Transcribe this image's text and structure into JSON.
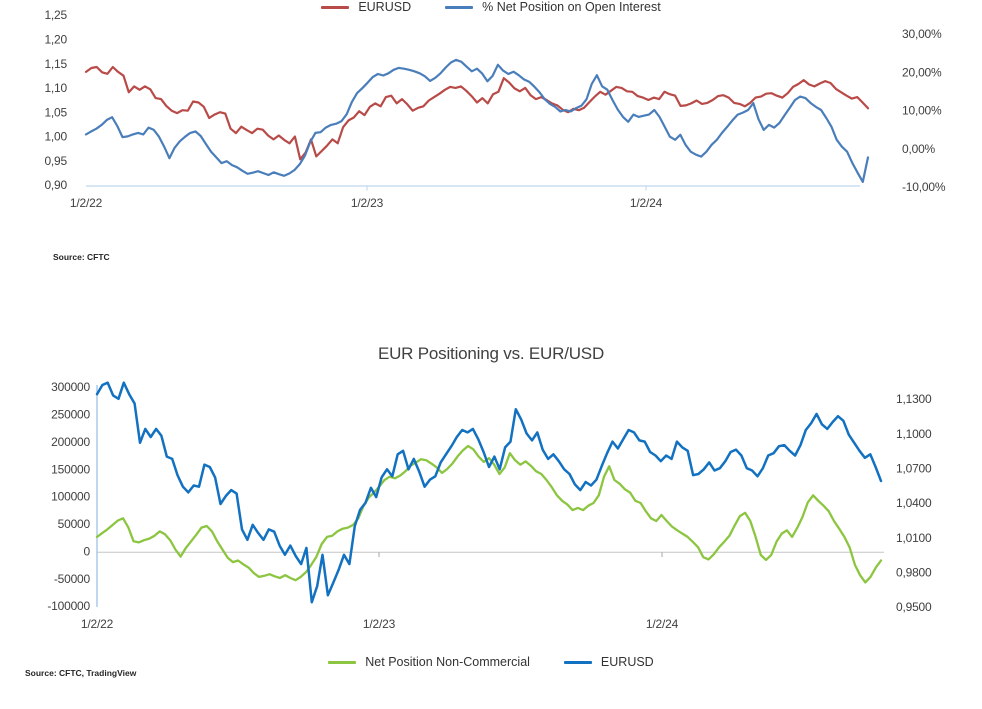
{
  "chart_data": [
    {
      "type": "line",
      "title": "",
      "source": "Source: CFTC",
      "x_tick_labels": [
        "1/2/22",
        "1/2/23",
        "1/2/24"
      ],
      "left_axis": {
        "ticks": [
          "1,25",
          "1,20",
          "1,15",
          "1,10",
          "1,05",
          "1,00",
          "0,95",
          "0,90"
        ],
        "min": 0.9,
        "max": 1.25
      },
      "right_axis": {
        "ticks": [
          "30,00%",
          "20,00%",
          "10,00%",
          "0,00%",
          "-10,00%"
        ],
        "min": -10,
        "max": 30
      },
      "legend_position": "bottom",
      "grid": "axis-line-only",
      "series": [
        {
          "name": "EURUSD",
          "axis": "left",
          "color": "#B84A48",
          "values": [
            1.135,
            1.143,
            1.145,
            1.134,
            1.131,
            1.145,
            1.135,
            1.127,
            1.093,
            1.105,
            1.098,
            1.105,
            1.099,
            1.081,
            1.079,
            1.065,
            1.055,
            1.05,
            1.056,
            1.055,
            1.074,
            1.072,
            1.063,
            1.04,
            1.047,
            1.052,
            1.049,
            1.018,
            1.009,
            1.022,
            1.015,
            1.009,
            1.018,
            1.016,
            1.004,
            0.996,
            1.004,
            0.995,
            0.988,
            1.002,
            0.955,
            0.969,
            0.996,
            0.961,
            0.972,
            0.983,
            0.996,
            0.988,
            1.021,
            1.035,
            1.041,
            1.054,
            1.046,
            1.063,
            1.07,
            1.064,
            1.083,
            1.086,
            1.07,
            1.079,
            1.068,
            1.055,
            1.061,
            1.064,
            1.076,
            1.083,
            1.09,
            1.098,
            1.104,
            1.102,
            1.105,
            1.096,
            1.085,
            1.072,
            1.081,
            1.07,
            1.089,
            1.094,
            1.122,
            1.113,
            1.101,
            1.095,
            1.102,
            1.087,
            1.079,
            1.083,
            1.077,
            1.07,
            1.066,
            1.057,
            1.052,
            1.059,
            1.056,
            1.061,
            1.073,
            1.084,
            1.094,
            1.088,
            1.096,
            1.104,
            1.102,
            1.095,
            1.094,
            1.085,
            1.082,
            1.077,
            1.082,
            1.079,
            1.094,
            1.089,
            1.086,
            1.065,
            1.066,
            1.07,
            1.076,
            1.069,
            1.071,
            1.077,
            1.085,
            1.087,
            1.082,
            1.071,
            1.069,
            1.064,
            1.071,
            1.082,
            1.084,
            1.09,
            1.091,
            1.086,
            1.082,
            1.091,
            1.104,
            1.11,
            1.118,
            1.109,
            1.105,
            1.111,
            1.116,
            1.112,
            1.1,
            1.093,
            1.086,
            1.08,
            1.083,
            1.072,
            1.06
          ]
        },
        {
          "name": "% Net Position on Open Interest",
          "axis": "right",
          "color": "#4A7EBB",
          "values": [
            4.0,
            4.8,
            5.5,
            6.5,
            7.8,
            8.5,
            6.2,
            3.3,
            3.5,
            4.0,
            4.4,
            4.0,
            5.8,
            5.2,
            3.4,
            0.8,
            -2.2,
            0.5,
            2.2,
            3.4,
            4.4,
            4.8,
            3.6,
            1.5,
            -0.5,
            -2.0,
            -3.5,
            -3.0,
            -4.0,
            -4.6,
            -5.5,
            -6.3,
            -6.0,
            -5.6,
            -6.1,
            -6.6,
            -5.9,
            -6.4,
            -6.8,
            -6.2,
            -5.3,
            -3.8,
            -1.5,
            2.0,
            4.4,
            4.6,
            5.8,
            6.5,
            6.8,
            7.5,
            9.3,
            12.5,
            14.8,
            16.1,
            17.5,
            19.0,
            19.8,
            19.4,
            20.0,
            20.9,
            21.4,
            21.2,
            20.9,
            20.5,
            20.0,
            19.2,
            18.0,
            18.8,
            20.0,
            21.5,
            22.8,
            23.5,
            23.0,
            21.7,
            20.5,
            21.2,
            19.9,
            17.9,
            19.3,
            22.2,
            20.7,
            19.8,
            20.4,
            19.5,
            18.4,
            17.8,
            16.5,
            15.0,
            13.2,
            12.0,
            11.2,
            10.0,
            10.4,
            10.0,
            10.9,
            11.5,
            13.2,
            17.2,
            19.5,
            16.6,
            15.7,
            13.0,
            10.5,
            8.6,
            7.3,
            9.2,
            8.6,
            8.9,
            9.2,
            10.4,
            8.6,
            6.0,
            3.4,
            2.6,
            3.9,
            1.3,
            -0.5,
            -1.3,
            -1.8,
            -0.5,
            1.3,
            2.6,
            4.4,
            6.0,
            7.7,
            9.2,
            9.7,
            10.4,
            12.2,
            8.0,
            5.2,
            6.5,
            5.8,
            7.0,
            9.0,
            11.0,
            13.0,
            13.9,
            13.5,
            12.2,
            11.2,
            10.4,
            8.3,
            6.0,
            2.6,
            0.8,
            -0.5,
            -3.5,
            -6.0,
            -8.4,
            -2.0
          ]
        }
      ]
    },
    {
      "type": "line",
      "title": "EUR Positioning vs. EUR/USD",
      "source": "Source: CFTC, TradingView",
      "x_tick_labels": [
        "1/2/22",
        "1/2/23",
        "1/2/24"
      ],
      "left_axis": {
        "ticks": [
          "300000",
          "250000",
          "200000",
          "150000",
          "100000",
          "50000",
          "0",
          "-50000",
          "-100000"
        ],
        "min": -100000,
        "max": 300000
      },
      "right_axis": {
        "ticks": [
          "1,1300",
          "1,1000",
          "1,0700",
          "1,0400",
          "1,0100",
          "0,9800",
          "0,9500"
        ],
        "min": 0.95,
        "max": 1.13
      },
      "legend_position": "bottom",
      "grid": "zero-line-only",
      "series": [
        {
          "name": "Net Position Non-Commercial",
          "axis": "left",
          "color": "#8CC540",
          "values": [
            28000,
            35000,
            42000,
            50000,
            58000,
            62000,
            45000,
            20000,
            18000,
            22000,
            25000,
            30000,
            38000,
            33000,
            22000,
            5000,
            -8000,
            8000,
            20000,
            32000,
            45000,
            48000,
            38000,
            20000,
            5000,
            -10000,
            -18000,
            -15000,
            -22000,
            -28000,
            -38000,
            -45000,
            -43000,
            -40000,
            -44000,
            -47000,
            -42000,
            -47000,
            -51000,
            -45000,
            -36000,
            -23000,
            -8000,
            15000,
            28000,
            30000,
            38000,
            43000,
            45000,
            50000,
            62000,
            85000,
            100000,
            109000,
            120000,
            132000,
            138000,
            135000,
            140000,
            148000,
            158000,
            164000,
            170000,
            168000,
            162000,
            155000,
            145000,
            152000,
            162000,
            175000,
            186000,
            194000,
            188000,
            175000,
            165000,
            172000,
            160000,
            143000,
            155000,
            181000,
            168000,
            160000,
            166000,
            158000,
            148000,
            143000,
            132000,
            119000,
            104000,
            94000,
            87000,
            77000,
            81000,
            77000,
            85000,
            90000,
            104000,
            138000,
            157000,
            132000,
            125000,
            115000,
            109000,
            94000,
            90000,
            75000,
            62000,
            57000,
            68000,
            57000,
            47000,
            40000,
            34000,
            28000,
            19000,
            9000,
            -9000,
            -13000,
            -4000,
            9000,
            19000,
            30000,
            49000,
            66000,
            72000,
            57000,
            28000,
            -5000,
            -14000,
            -5000,
            19000,
            34000,
            40000,
            28000,
            45000,
            65000,
            91000,
            104000,
            94000,
            85000,
            75000,
            57000,
            43000,
            28000,
            9000,
            -23000,
            -42000,
            -55000,
            -45000,
            -28000,
            -15000
          ]
        },
        {
          "name": "EURUSD",
          "axis": "right",
          "color": "#1271C0",
          "values": [
            1.135,
            1.143,
            1.145,
            1.134,
            1.131,
            1.145,
            1.135,
            1.127,
            1.093,
            1.105,
            1.098,
            1.105,
            1.099,
            1.081,
            1.079,
            1.065,
            1.055,
            1.05,
            1.056,
            1.055,
            1.074,
            1.072,
            1.063,
            1.04,
            1.047,
            1.052,
            1.049,
            1.018,
            1.009,
            1.022,
            1.015,
            1.009,
            1.018,
            1.016,
            1.004,
            0.996,
            1.004,
            0.995,
            0.988,
            1.002,
            0.955,
            0.969,
            0.996,
            0.961,
            0.972,
            0.983,
            0.996,
            0.988,
            1.021,
            1.035,
            1.041,
            1.054,
            1.046,
            1.063,
            1.07,
            1.064,
            1.083,
            1.086,
            1.07,
            1.079,
            1.068,
            1.055,
            1.061,
            1.064,
            1.076,
            1.083,
            1.09,
            1.098,
            1.104,
            1.102,
            1.105,
            1.096,
            1.085,
            1.072,
            1.081,
            1.07,
            1.089,
            1.094,
            1.122,
            1.113,
            1.101,
            1.095,
            1.102,
            1.087,
            1.079,
            1.083,
            1.077,
            1.07,
            1.066,
            1.057,
            1.052,
            1.059,
            1.056,
            1.061,
            1.073,
            1.084,
            1.094,
            1.088,
            1.096,
            1.104,
            1.102,
            1.095,
            1.094,
            1.085,
            1.082,
            1.077,
            1.082,
            1.079,
            1.094,
            1.089,
            1.086,
            1.065,
            1.066,
            1.07,
            1.076,
            1.069,
            1.071,
            1.077,
            1.085,
            1.087,
            1.082,
            1.071,
            1.069,
            1.064,
            1.071,
            1.082,
            1.084,
            1.09,
            1.091,
            1.086,
            1.082,
            1.091,
            1.104,
            1.11,
            1.118,
            1.109,
            1.105,
            1.111,
            1.116,
            1.112,
            1.1,
            1.093,
            1.086,
            1.08,
            1.083,
            1.072,
            1.06
          ]
        }
      ]
    }
  ]
}
